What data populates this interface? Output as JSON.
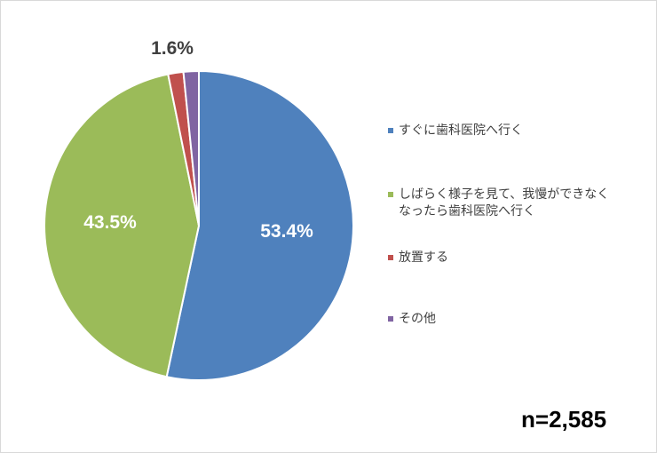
{
  "chart_data": {
    "type": "pie",
    "categories": [
      "すぐに歯科医院へ行く",
      "しばらく様子を見て、我慢ができなく\nなったら歯科医院へ行く",
      "放置する",
      "その他"
    ],
    "values": [
      53.4,
      43.5,
      1.6,
      1.6
    ],
    "data_labels": [
      "53.4%",
      "43.5%",
      "",
      "1.6%"
    ],
    "colors": [
      "#4F81BD",
      "#9BBB59",
      "#C0504D",
      "#8064A2"
    ],
    "legend_position": "right",
    "start_angle": "12 o'clock",
    "direction": "clockwise"
  },
  "annotation": {
    "sample_size": "n=2,585"
  }
}
